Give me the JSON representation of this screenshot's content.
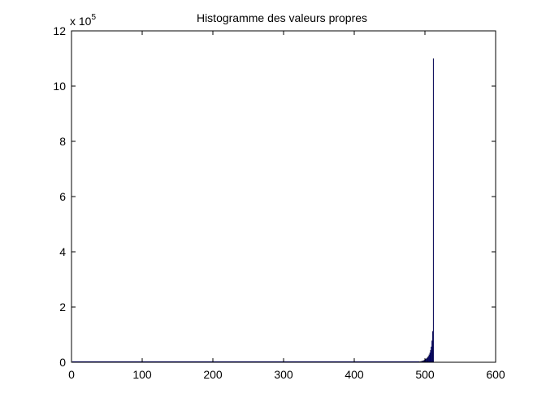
{
  "chart_data": {
    "type": "bar",
    "title": "Histogramme des valeurs propres",
    "xlabel": "",
    "ylabel": "",
    "xlim": [
      0,
      600
    ],
    "ylim": [
      0,
      1200000
    ],
    "xticks": [
      0,
      100,
      200,
      300,
      400,
      500,
      600
    ],
    "yticks": [
      0,
      200000,
      400000,
      600000,
      800000,
      1000000,
      1200000
    ],
    "xtick_labels": [
      "0",
      "100",
      "200",
      "300",
      "400",
      "500",
      "600"
    ],
    "ytick_labels": [
      "0",
      "2",
      "4",
      "6",
      "8",
      "10",
      "12"
    ],
    "y_multiplier_base": "x 10",
    "y_multiplier_exponent": "5",
    "grid": false,
    "bar_color": "#00007f",
    "baseline_color": "#00007f",
    "x": [
      492,
      493,
      494,
      495,
      496,
      497,
      498,
      499,
      500,
      501,
      502,
      503,
      504,
      505,
      506,
      507,
      508,
      509,
      510,
      511,
      512
    ],
    "values": [
      2000,
      2500,
      3000,
      3500,
      4000,
      5000,
      6000,
      7500,
      9000,
      11000,
      13000,
      15000,
      18000,
      22000,
      27000,
      34000,
      43000,
      56000,
      78000,
      112000,
      1100000
    ]
  }
}
